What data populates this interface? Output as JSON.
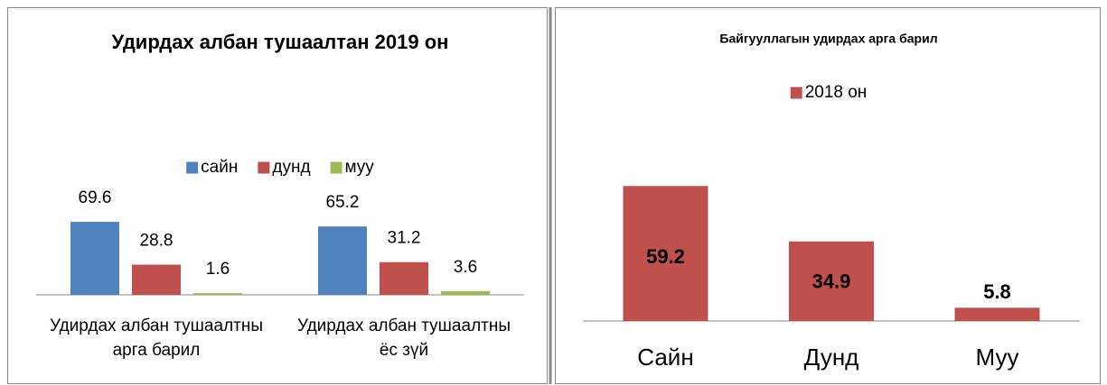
{
  "chart_data": [
    {
      "type": "bar",
      "title": "Удирдах албан тушаалтан 2019 он",
      "categories": [
        "Удирдах албан тушаалтны арга барил",
        "Удирдах албан тушаалтны ёс зүй"
      ],
      "series": [
        {
          "name": "сайн",
          "color": "#4f81bd",
          "values": [
            69.6,
            65.2
          ]
        },
        {
          "name": "дунд",
          "color": "#c0504d",
          "values": [
            28.8,
            31.2
          ]
        },
        {
          "name": "муу",
          "color": "#9bbb59",
          "values": [
            1.6,
            3.6
          ]
        }
      ],
      "ylim": [
        0,
        80
      ],
      "legend": "top"
    },
    {
      "type": "bar",
      "title": "Байгууллагын удирдах арга барил",
      "categories": [
        "Сайн",
        "Дунд",
        "Муу"
      ],
      "series": [
        {
          "name": "2018 он",
          "color": "#c0504d",
          "values": [
            59.2,
            34.9,
            5.8
          ]
        }
      ],
      "ylim": [
        0,
        70
      ],
      "legend": "top"
    }
  ]
}
